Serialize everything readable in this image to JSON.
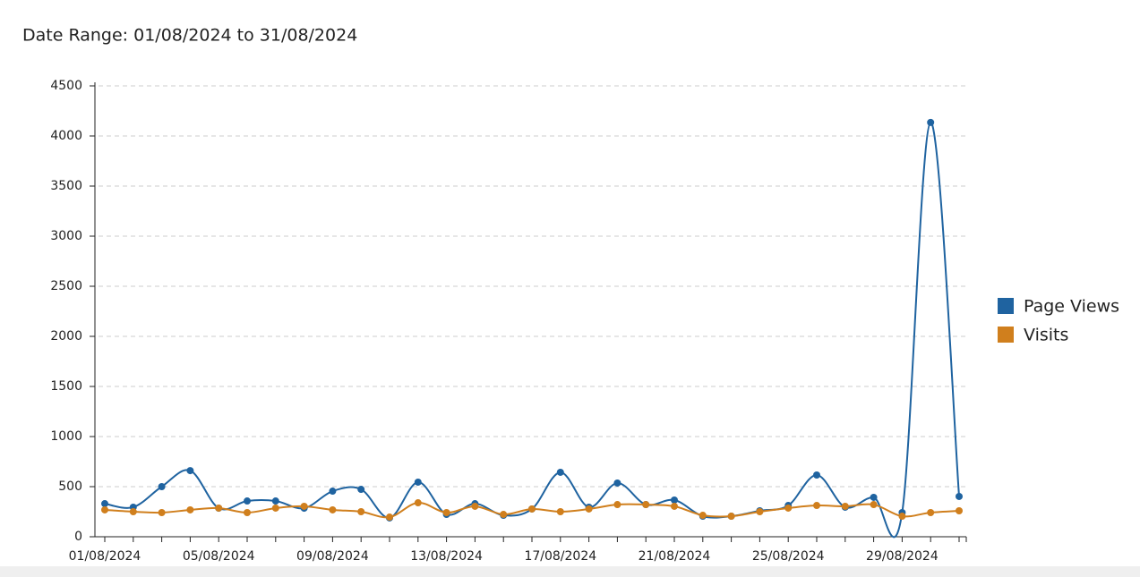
{
  "chart_data": {
    "type": "line",
    "title": "Date Range: 01/08/2024 to 31/08/2024",
    "categories": [
      "01/08/2024",
      null,
      null,
      null,
      "05/08/2024",
      null,
      null,
      null,
      "09/08/2024",
      null,
      null,
      null,
      "13/08/2024",
      null,
      null,
      null,
      "17/08/2024",
      null,
      null,
      null,
      "21/08/2024",
      null,
      null,
      null,
      "25/08/2024",
      null,
      null,
      null,
      "29/08/2024",
      null,
      null
    ],
    "series": [
      {
        "name": "Page Views",
        "color": "#1f63a0",
        "values": [
          330,
          295,
          500,
          660,
          285,
          357,
          357,
          285,
          455,
          473,
          188,
          545,
          223,
          330,
          214,
          277,
          643,
          295,
          536,
          321,
          366,
          205,
          205,
          259,
          312,
          616,
          295,
          393,
          241,
          4135,
          402
        ]
      },
      {
        "name": "Visits",
        "color": "#d07f1d",
        "values": [
          268,
          250,
          241,
          268,
          286,
          241,
          286,
          304,
          268,
          250,
          196,
          339,
          241,
          304,
          223,
          277,
          250,
          277,
          321,
          321,
          304,
          214,
          205,
          250,
          286,
          312,
          304,
          321,
          205,
          241,
          259
        ]
      }
    ],
    "ylim": [
      0,
      4500
    ],
    "yticks": [
      0,
      500,
      1000,
      1500,
      2000,
      2500,
      3000,
      3500,
      4000,
      4500
    ],
    "grid": true,
    "smooth": true,
    "legend": "right"
  }
}
